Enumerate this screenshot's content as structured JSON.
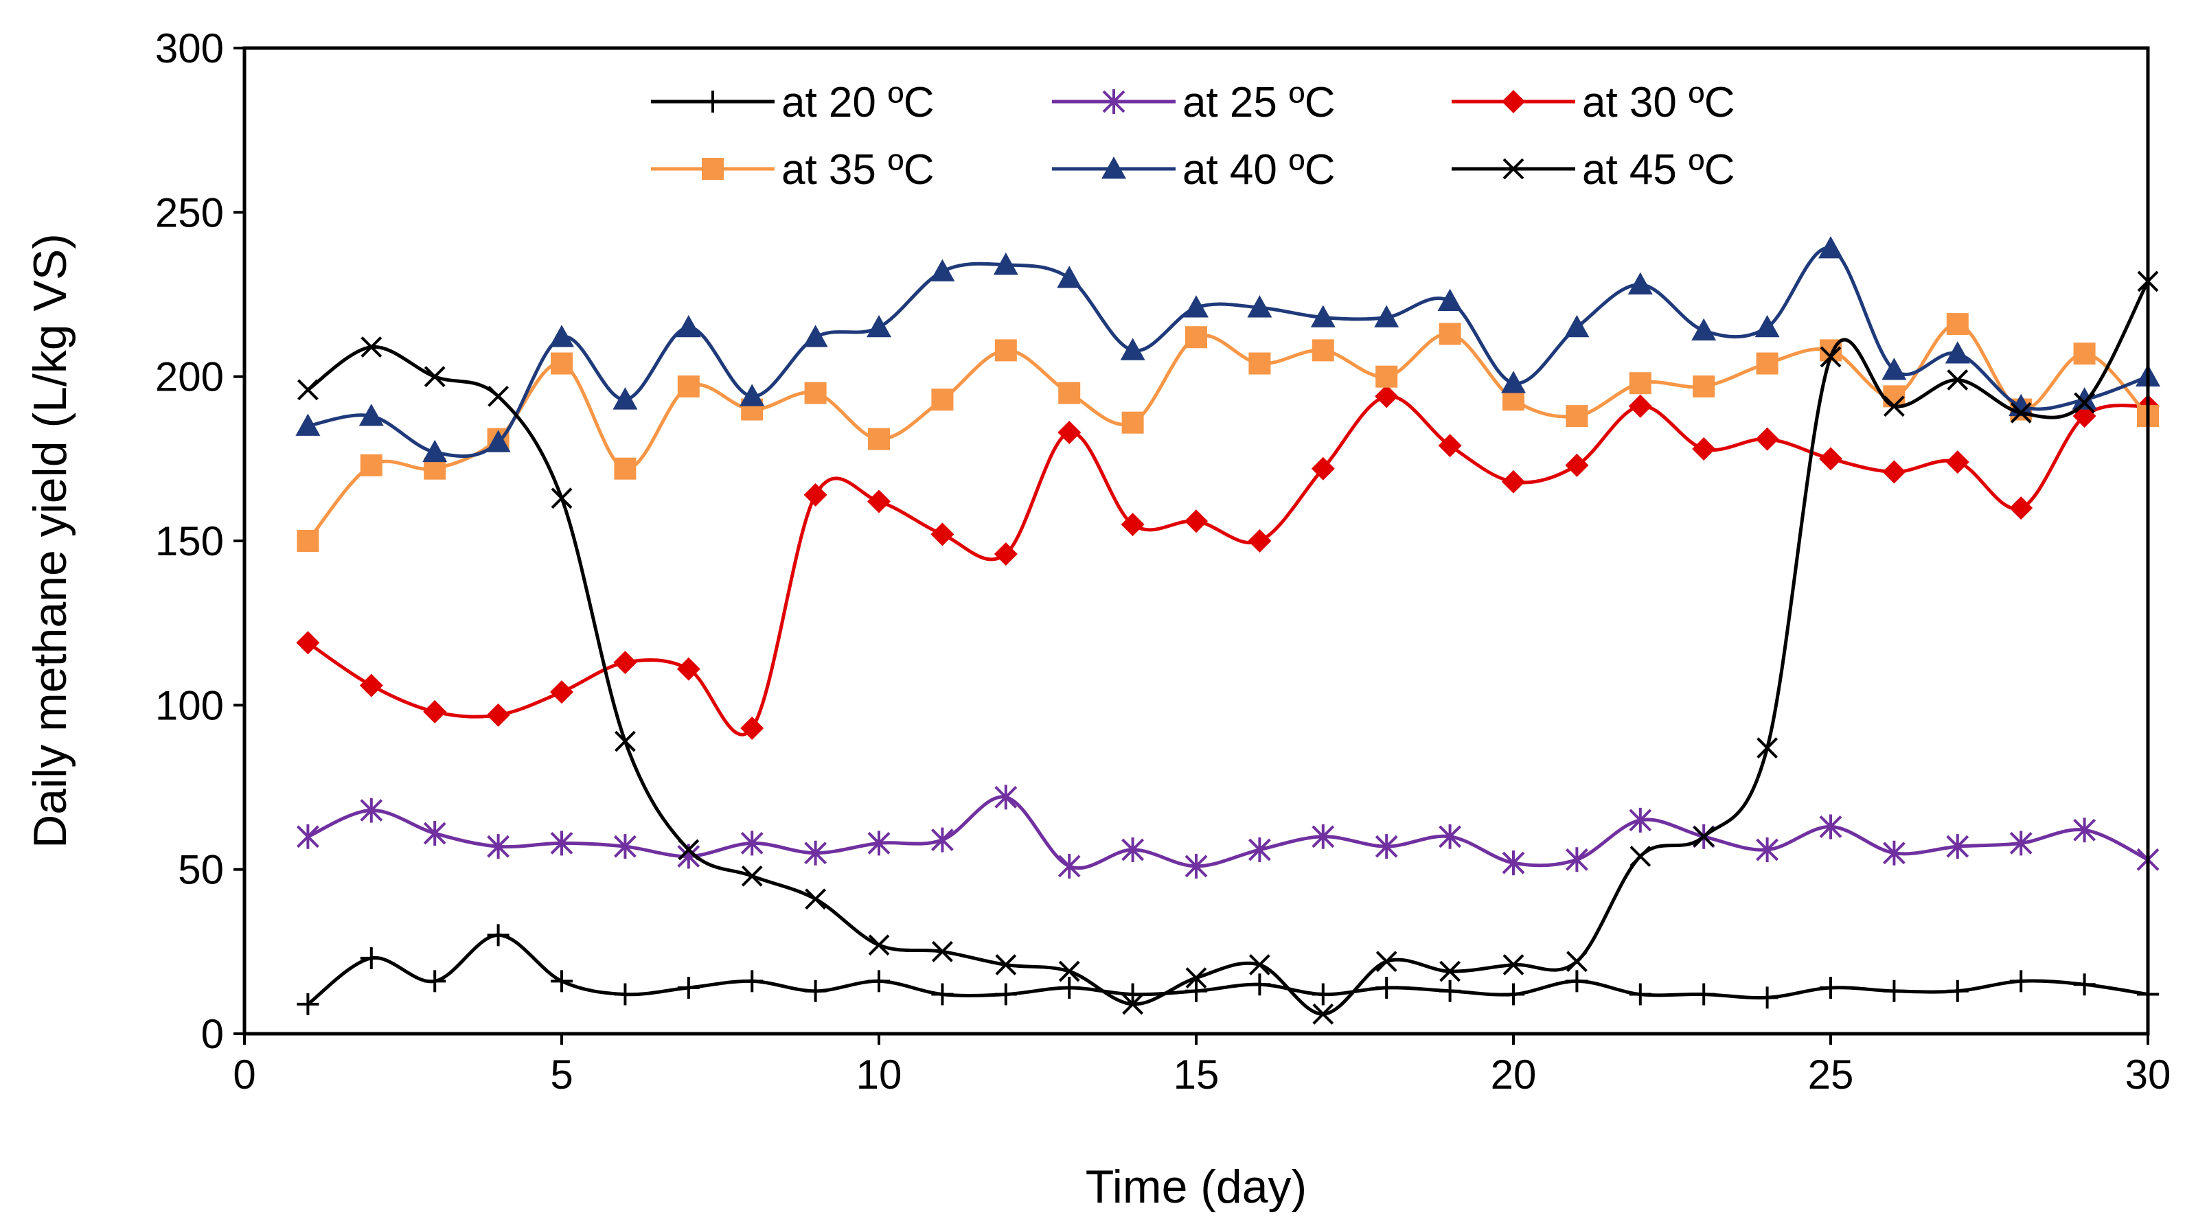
{
  "chart_data": {
    "type": "line",
    "title": "",
    "xlabel": "Time (day)",
    "ylabel": "Daily methane yield (L/kg VS)",
    "xlim": [
      0,
      30
    ],
    "ylim": [
      0,
      300
    ],
    "xticks": [
      0,
      5,
      10,
      15,
      20,
      25,
      30
    ],
    "yticks": [
      0,
      50,
      100,
      150,
      200,
      250,
      300
    ],
    "grid": false,
    "legend_position": "top",
    "x": [
      1,
      2,
      3,
      4,
      5,
      6,
      7,
      8,
      9,
      10,
      11,
      12,
      13,
      14,
      15,
      16,
      17,
      18,
      19,
      20,
      21,
      22,
      23,
      24,
      25,
      26,
      27,
      28,
      29,
      30
    ],
    "series": [
      {
        "name": "at 20 ºC",
        "color": "#000000",
        "marker": "plus",
        "values": [
          9,
          23,
          16,
          30,
          16,
          12,
          14,
          16,
          13,
          16,
          12,
          12,
          14,
          12,
          13,
          15,
          12,
          14,
          13,
          12,
          16,
          12,
          12,
          11,
          14,
          13,
          13,
          16,
          15,
          12
        ]
      },
      {
        "name": "at 25 ºC",
        "color": "#7030A0",
        "marker": "star",
        "values": [
          60,
          68,
          61,
          57,
          58,
          57,
          54,
          58,
          55,
          58,
          59,
          72,
          51,
          56,
          51,
          56,
          60,
          57,
          60,
          52,
          53,
          65,
          60,
          56,
          63,
          55,
          57,
          58,
          62,
          53
        ]
      },
      {
        "name": "at 30 ºC",
        "color": "#E00000",
        "marker": "diamond",
        "values": [
          119,
          106,
          98,
          97,
          104,
          113,
          111,
          93,
          164,
          162,
          152,
          146,
          183,
          155,
          156,
          150,
          172,
          194,
          179,
          168,
          173,
          191,
          178,
          181,
          175,
          171,
          174,
          160,
          188,
          191
        ]
      },
      {
        "name": "at 35 ºC",
        "color": "#F79646",
        "marker": "square",
        "values": [
          150,
          173,
          172,
          181,
          204,
          172,
          197,
          190,
          195,
          181,
          193,
          208,
          195,
          186,
          212,
          204,
          208,
          200,
          213,
          193,
          188,
          198,
          197,
          204,
          208,
          194,
          216,
          190,
          207,
          188
        ]
      },
      {
        "name": "at 40 ºC",
        "color": "#1F3A7A",
        "marker": "triangle",
        "values": [
          185,
          188,
          177,
          180,
          212,
          193,
          215,
          194,
          212,
          215,
          232,
          234,
          230,
          208,
          221,
          221,
          218,
          218,
          223,
          198,
          215,
          228,
          214,
          215,
          239,
          202,
          207,
          191,
          193,
          200
        ]
      },
      {
        "name": "at 45 ºC",
        "color": "#000000",
        "marker": "x",
        "values": [
          196,
          209,
          200,
          194,
          163,
          89,
          56,
          48,
          41,
          27,
          25,
          21,
          19,
          9,
          17,
          21,
          6,
          22,
          19,
          21,
          22,
          54,
          60,
          87,
          206,
          191,
          199,
          189,
          192,
          229
        ]
      }
    ]
  }
}
